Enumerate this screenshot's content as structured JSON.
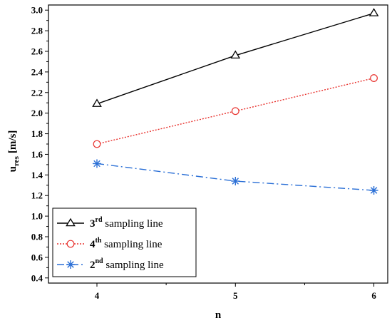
{
  "chart_data": {
    "type": "line",
    "xlabel": "n",
    "ylabel": "u",
    "ylabel_sub": "res",
    "ylabel_unit": "[m/s]",
    "xlim": [
      3.65,
      6.1
    ],
    "ylim": [
      0.35,
      3.05
    ],
    "x": [
      4,
      5,
      6
    ],
    "x_ticks": [
      "4",
      "5",
      "6"
    ],
    "y_ticks": [
      "0.4",
      "0.6",
      "0.8",
      "1.0",
      "1.2",
      "1.4",
      "1.6",
      "1.8",
      "2.0",
      "2.2",
      "2.4",
      "2.6",
      "2.8",
      "3.0"
    ],
    "grid": false,
    "legend_position": "bottom-left",
    "series": [
      {
        "key": "s3",
        "label_num": "3",
        "label_sup": "rd",
        "label_rest": " sampling line",
        "values": [
          2.09,
          2.56,
          2.97
        ],
        "color": "#000000",
        "dash": "",
        "marker": "triangle"
      },
      {
        "key": "s4",
        "label_num": "4",
        "label_sup": "th",
        "label_rest": " sampling line",
        "values": [
          1.7,
          2.02,
          2.34
        ],
        "color": "#e8322e",
        "dash": "2,2",
        "marker": "circle"
      },
      {
        "key": "s2",
        "label_num": "2",
        "label_sup": "nd",
        "label_rest": " sampling line",
        "values": [
          1.51,
          1.34,
          1.25
        ],
        "color": "#2a6fd6",
        "dash": "10,4,2,4",
        "marker": "asterisk"
      }
    ]
  }
}
